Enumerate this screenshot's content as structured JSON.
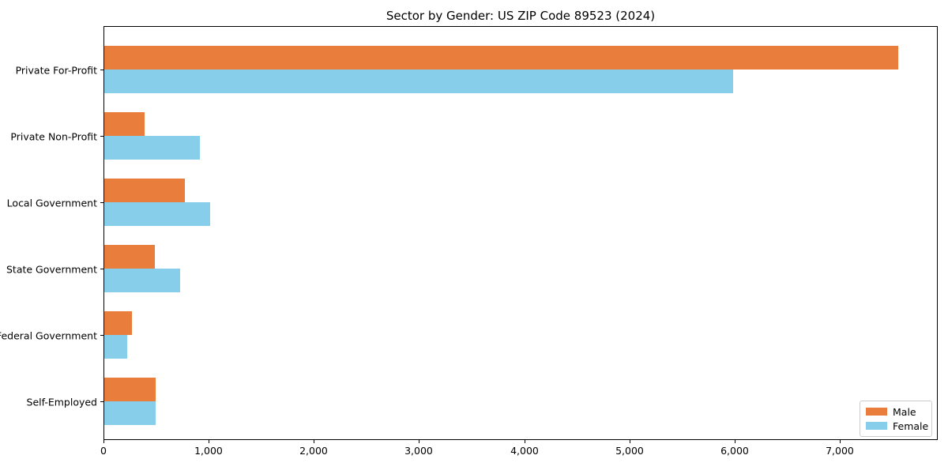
{
  "chart_data": {
    "type": "bar",
    "orientation": "horizontal",
    "title": "Sector by Gender: US ZIP Code 89523 (2024)",
    "xlabel": "",
    "ylabel": "",
    "grid": false,
    "categories": [
      "Private For-Profit",
      "Private Non-Profit",
      "Local Government",
      "State Government",
      "Federal Government",
      "Self-Employed"
    ],
    "series": [
      {
        "name": "Male",
        "color": "#E87D3C",
        "values": [
          7550,
          385,
          765,
          480,
          260,
          490
        ]
      },
      {
        "name": "Female",
        "color": "#87CEEB",
        "values": [
          5975,
          910,
          1005,
          720,
          215,
          490
        ]
      }
    ],
    "xlim": [
      0,
      7930
    ],
    "xticks": {
      "values": [
        0,
        1000,
        2000,
        3000,
        4000,
        5000,
        6000,
        7000
      ],
      "labels": [
        "0",
        "1,000",
        "2,000",
        "3,000",
        "4,000",
        "5,000",
        "6,000",
        "7,000"
      ]
    },
    "legend": {
      "position": "lower right",
      "entries": [
        "Male",
        "Female"
      ]
    }
  }
}
